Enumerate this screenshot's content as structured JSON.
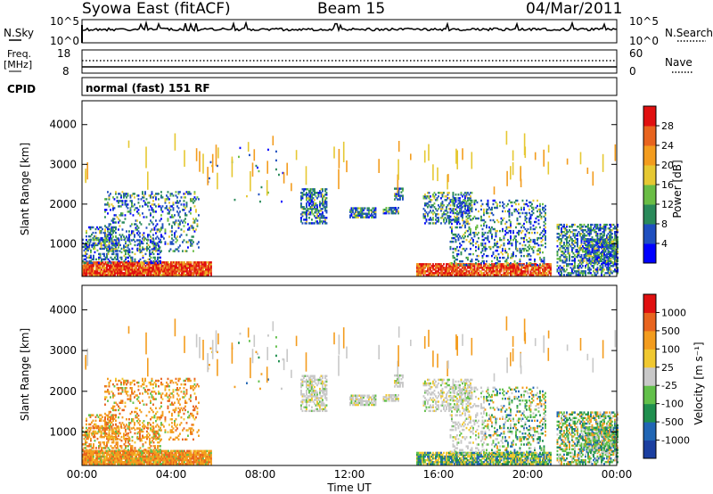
{
  "header": {
    "station": "Syowa East (fitACF)",
    "beam": "Beam 15",
    "date": "04/Mar/2011"
  },
  "noise_panel": {
    "left_label": "N.Sky",
    "right_label": "N.Search",
    "tick_top": "10^5",
    "tick_bottom": "10^0"
  },
  "freq_panel": {
    "left_label_1": "Freq.",
    "left_label_2": "[MHz]",
    "left_tick_top": "18",
    "left_tick_bottom": "8",
    "right_label": "Nave",
    "right_tick_top": "60",
    "right_tick_bottom": "0"
  },
  "cpid_panel": {
    "label": "CPID",
    "value": "normal (fast) 151 RF"
  },
  "x_axis": {
    "ticks": [
      "00:00",
      "04:00",
      "08:00",
      "12:00",
      "16:00",
      "20:00",
      "00:00"
    ],
    "title": "Time UT"
  },
  "range_axis": {
    "title": "Slant Range [km]",
    "ticks": [
      "1000",
      "2000",
      "3000",
      "4000"
    ]
  },
  "colors": {
    "power_scale": [
      "#0000ff",
      "#1f4fbf",
      "#2a8a5a",
      "#6abd45",
      "#e6c832",
      "#f39c1e",
      "#e8641e",
      "#e01010"
    ],
    "velocity_scale": [
      "#1b3fa0",
      "#2166b4",
      "#1f8f4e",
      "#62c04a",
      "#c8c8c8",
      "#f0c830",
      "#f39c1e",
      "#e8641e",
      "#e01010"
    ]
  },
  "chart_data": [
    {
      "type": "heatmap",
      "title": "Power",
      "colorbar_label": "Power [dB]",
      "colorbar_ticks": [
        "4",
        "8",
        "12",
        "16",
        "20",
        "24",
        "28"
      ],
      "zlim": [
        0,
        30
      ],
      "x_range_hours": [
        0,
        24
      ],
      "y_range_km": [
        180,
        4600
      ],
      "xlabel": "",
      "ylabel": "Slant Range [km]"
    },
    {
      "type": "heatmap",
      "title": "Velocity",
      "colorbar_label": "Velocity [m s⁻¹]",
      "colorbar_ticks": [
        "-1000",
        "-500",
        "-100",
        "-25",
        "25",
        "100",
        "500",
        "1000"
      ],
      "zlim": [
        -1000,
        1000
      ],
      "x_range_hours": [
        0,
        24
      ],
      "y_range_km": [
        180,
        4600
      ],
      "xlabel": "Time UT",
      "ylabel": "Slant Range [km]"
    }
  ]
}
